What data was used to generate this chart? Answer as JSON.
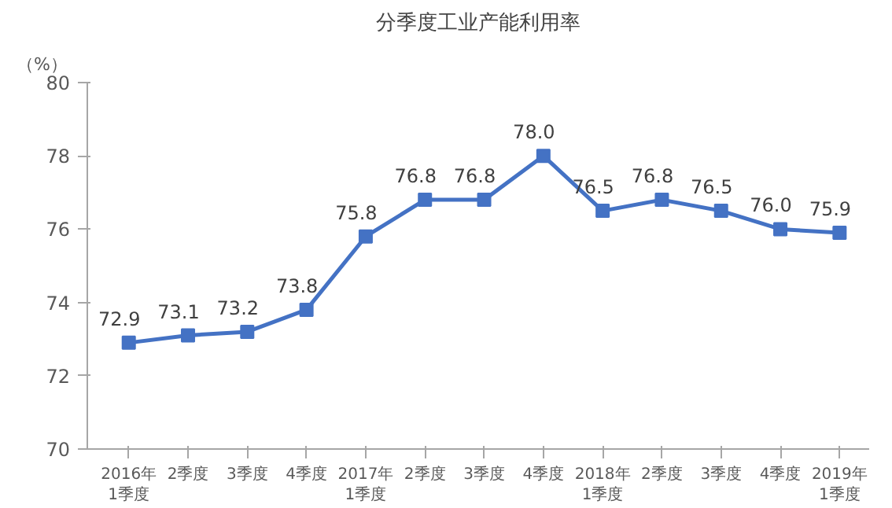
{
  "chart_data": {
    "type": "line",
    "title": "分季度工业产能利用率",
    "ylabel": "（%）",
    "categories": [
      "2016年\n1季度",
      "2季度",
      "3季度",
      "4季度",
      "2017年\n1季度",
      "2季度",
      "3季度",
      "4季度",
      "2018年\n1季度",
      "2季度",
      "3季度",
      "4季度",
      "2019年\n1季度"
    ],
    "series": [
      {
        "color": "#4472c4",
        "values": [
          72.9,
          73.1,
          73.2,
          73.8,
          75.8,
          76.8,
          76.8,
          78.0,
          76.5,
          76.8,
          76.5,
          76.0,
          75.9
        ],
        "value_labels": [
          "72.9",
          "73.1",
          "73.2",
          "73.8",
          "75.8",
          "76.8",
          "76.8",
          "78.0",
          "76.5",
          "76.8",
          "76.5",
          "76.0",
          "75.9"
        ]
      }
    ],
    "ylim": [
      70,
      80
    ],
    "yticks": [
      70,
      72,
      74,
      76,
      78,
      80
    ],
    "grid": false,
    "marker": "square",
    "line_style": "solid"
  }
}
